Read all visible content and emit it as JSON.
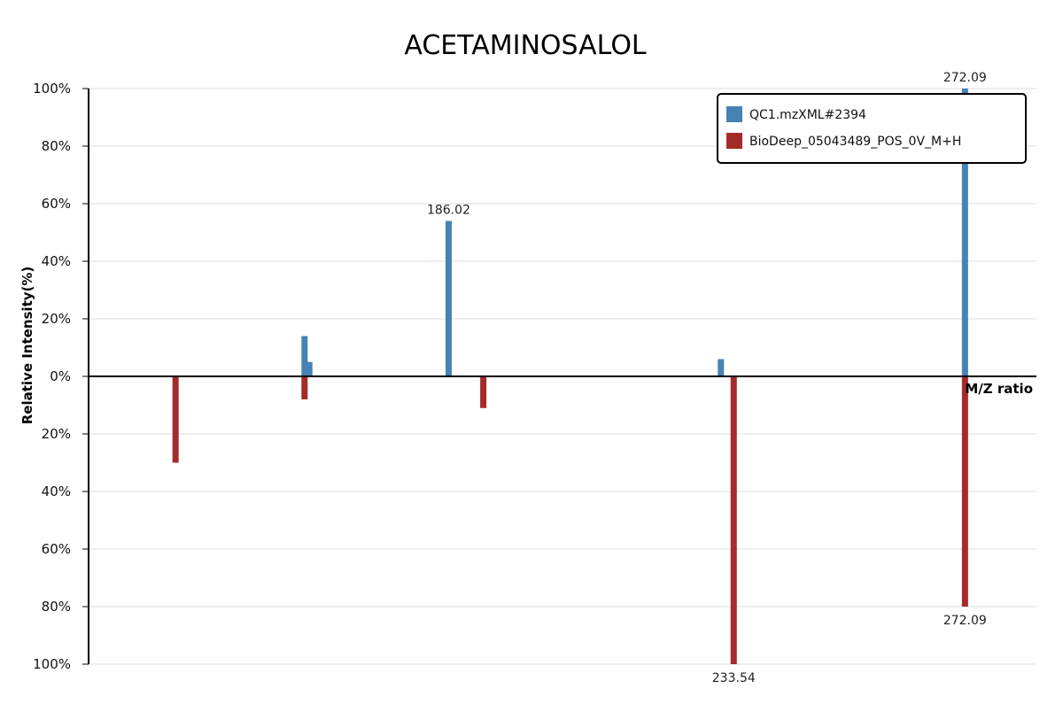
{
  "chart_data": {
    "type": "bar",
    "title": "ACETAMINOSALOL",
    "xlabel": "M/Z ratio",
    "ylabel": "Relative Intensity(%)",
    "ylim": [
      -100,
      100
    ],
    "xlim": [
      126,
      284
    ],
    "grid": true,
    "legend_position": "top-right",
    "y_ticks": [
      "100%",
      "80%",
      "60%",
      "40%",
      "20%",
      "0%",
      "20%",
      "40%",
      "60%",
      "80%",
      "100%"
    ],
    "series": [
      {
        "name": "QC1.mzXML#2394",
        "color": "#4682b4",
        "direction": "up",
        "peaks": [
          {
            "mz": 162.0,
            "intensity": 14,
            "label": ""
          },
          {
            "mz": 162.8,
            "intensity": 5,
            "label": ""
          },
          {
            "mz": 186.02,
            "intensity": 54,
            "label": "186.02"
          },
          {
            "mz": 231.4,
            "intensity": 6,
            "label": ""
          },
          {
            "mz": 272.09,
            "intensity": 100,
            "label": "272.09"
          }
        ]
      },
      {
        "name": "BioDeep_05043489_POS_0V_M+H",
        "color": "#a52a2a",
        "direction": "down",
        "peaks": [
          {
            "mz": 140.5,
            "intensity": 30,
            "label": ""
          },
          {
            "mz": 162.0,
            "intensity": 8,
            "label": ""
          },
          {
            "mz": 191.8,
            "intensity": 11,
            "label": ""
          },
          {
            "mz": 233.54,
            "intensity": 100,
            "label": "233.54"
          },
          {
            "mz": 272.09,
            "intensity": 80,
            "label": "272.09"
          }
        ]
      }
    ]
  }
}
